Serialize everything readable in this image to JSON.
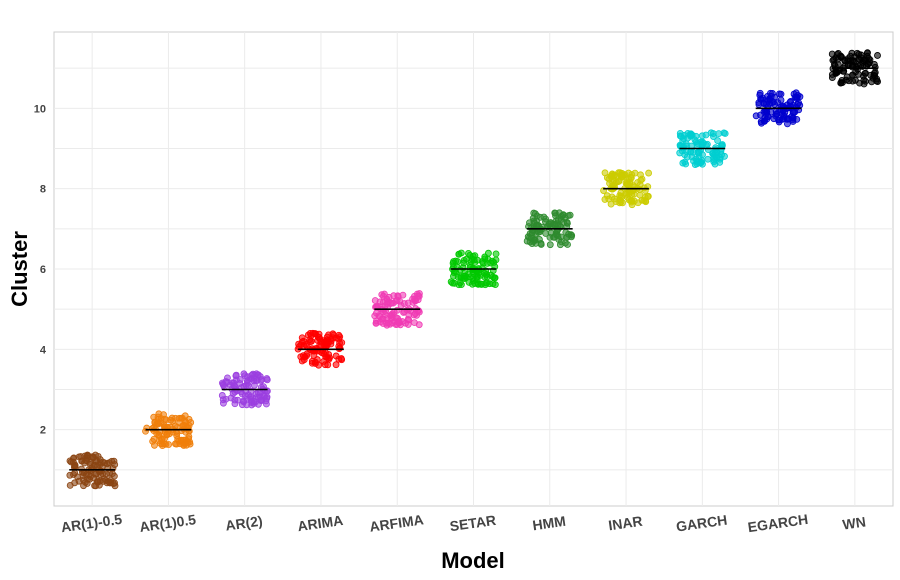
{
  "chart_data": {
    "type": "scatter",
    "xlabel": "Model",
    "ylabel": "Cluster",
    "categories": [
      "AR(1)-0.5",
      "AR(1)0.5",
      "AR(2)",
      "ARIMA",
      "ARFIMA",
      "SETAR",
      "HMM",
      "INAR",
      "GARCH",
      "EGARCH",
      "WN"
    ],
    "ylim": [
      0.1,
      11.9
    ],
    "yticks": [
      2,
      4,
      6,
      8,
      10
    ],
    "grid": true,
    "jitter_halfwidth_x": 0.3,
    "jitter_halfwidth_y": 0.4,
    "points_per_group": 100,
    "series": [
      {
        "category": "AR(1)-0.5",
        "center": 1,
        "median": 1,
        "color": "#8B4513"
      },
      {
        "category": "AR(1)0.5",
        "center": 2,
        "median": 2,
        "color": "#F07F0A"
      },
      {
        "category": "AR(2)",
        "center": 3,
        "median": 3,
        "color": "#9B3FE0"
      },
      {
        "category": "ARIMA",
        "center": 4,
        "median": 4,
        "color": "#FF0000"
      },
      {
        "category": "ARFIMA",
        "center": 5,
        "median": 5,
        "color": "#F03CB4"
      },
      {
        "category": "SETAR",
        "center": 6,
        "median": 6,
        "color": "#00C800"
      },
      {
        "category": "HMM",
        "center": 7,
        "median": 7,
        "color": "#2E8B2E"
      },
      {
        "category": "INAR",
        "center": 8,
        "median": 8,
        "color": "#CCCC00"
      },
      {
        "category": "GARCH",
        "center": 9,
        "median": 9,
        "color": "#00CED1"
      },
      {
        "category": "EGARCH",
        "center": 10,
        "median": 10,
        "color": "#0000CD"
      },
      {
        "category": "WN",
        "center": 11,
        "median": 11,
        "color": "#000000"
      }
    ]
  }
}
